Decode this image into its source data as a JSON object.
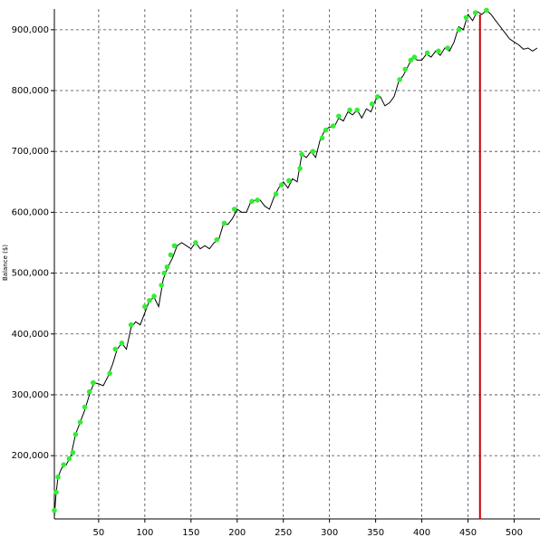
{
  "chart_data": {
    "type": "line",
    "y_label": "Balance ($)",
    "xlim": [
      2,
      528
    ],
    "ylim": [
      96000,
      934000
    ],
    "xticks": [
      50,
      100,
      150,
      200,
      250,
      300,
      350,
      400,
      450,
      500
    ],
    "yticks": [
      {
        "value": 200000,
        "label": "200,000"
      },
      {
        "value": 300000,
        "label": "300,000"
      },
      {
        "value": 400000,
        "label": "400,000"
      },
      {
        "value": 500000,
        "label": "500,000"
      },
      {
        "value": 600000,
        "label": "600,000"
      },
      {
        "value": 700000,
        "label": "700,000"
      },
      {
        "value": 800000,
        "label": "800,000"
      },
      {
        "value": 900000,
        "label": "900,000"
      }
    ],
    "grid": true,
    "line": {
      "color": "#000000",
      "x": [
        2,
        4,
        6,
        10,
        15,
        20,
        25,
        30,
        35,
        40,
        45,
        50,
        55,
        60,
        65,
        70,
        75,
        80,
        85,
        90,
        95,
        100,
        105,
        110,
        115,
        120,
        125,
        130,
        135,
        140,
        145,
        150,
        155,
        160,
        165,
        170,
        175,
        180,
        185,
        190,
        195,
        200,
        205,
        210,
        215,
        220,
        225,
        230,
        235,
        240,
        245,
        250,
        255,
        260,
        265,
        270,
        275,
        280,
        285,
        290,
        295,
        300,
        305,
        310,
        315,
        320,
        325,
        330,
        335,
        340,
        345,
        350,
        355,
        360,
        365,
        370,
        375,
        380,
        385,
        390,
        395,
        400,
        405,
        410,
        415,
        420,
        425,
        430,
        435,
        440,
        445,
        450,
        455,
        460,
        465,
        470,
        475,
        480,
        485,
        490,
        495,
        500,
        505,
        510,
        515,
        520,
        525
      ],
      "values": [
        100000,
        140000,
        165000,
        180000,
        185000,
        200000,
        235000,
        255000,
        275000,
        300000,
        320000,
        318000,
        315000,
        330000,
        350000,
        375000,
        385000,
        375000,
        410000,
        420000,
        415000,
        435000,
        455000,
        460000,
        445000,
        490000,
        510000,
        525000,
        545000,
        550000,
        545000,
        540000,
        550000,
        540000,
        545000,
        540000,
        550000,
        555000,
        580000,
        580000,
        590000,
        605000,
        600000,
        600000,
        618000,
        620000,
        620000,
        610000,
        605000,
        625000,
        640000,
        650000,
        640000,
        655000,
        650000,
        695000,
        690000,
        700000,
        690000,
        720000,
        735000,
        740000,
        740000,
        755000,
        750000,
        765000,
        760000,
        768000,
        755000,
        770000,
        765000,
        785000,
        790000,
        775000,
        780000,
        790000,
        815000,
        825000,
        840000,
        855000,
        850000,
        850000,
        860000,
        855000,
        865000,
        858000,
        870000,
        865000,
        880000,
        905000,
        900000,
        925000,
        915000,
        930000,
        925000,
        932000,
        925000,
        915000,
        905000,
        895000,
        885000,
        880000,
        875000,
        868000,
        870000,
        865000,
        870000
      ]
    },
    "markers": {
      "color": "#33ee33",
      "x": [
        2,
        4,
        6,
        12,
        18,
        22,
        25,
        30,
        35,
        40,
        44,
        62,
        68,
        75,
        85,
        100,
        105,
        110,
        118,
        121,
        124,
        128,
        132,
        155,
        178,
        186,
        197,
        216,
        222,
        242,
        248,
        256,
        268,
        270,
        282,
        292,
        296,
        304,
        310,
        322,
        330,
        346,
        352,
        376,
        382,
        388,
        392,
        406,
        418,
        428,
        440,
        448,
        458,
        470
      ],
      "values": [
        110000,
        140000,
        165000,
        185000,
        195000,
        205000,
        235000,
        255000,
        280000,
        305000,
        320000,
        335000,
        375000,
        385000,
        415000,
        445000,
        455000,
        462000,
        480000,
        500000,
        510000,
        530000,
        545000,
        550000,
        555000,
        582000,
        605000,
        618000,
        620000,
        630000,
        645000,
        652000,
        672000,
        695000,
        700000,
        722000,
        735000,
        742000,
        758000,
        768000,
        768000,
        778000,
        790000,
        818000,
        835000,
        850000,
        855000,
        862000,
        865000,
        870000,
        900000,
        920000,
        928000,
        932000
      ]
    },
    "vline": {
      "x": 463,
      "color": "#cc0000"
    }
  }
}
